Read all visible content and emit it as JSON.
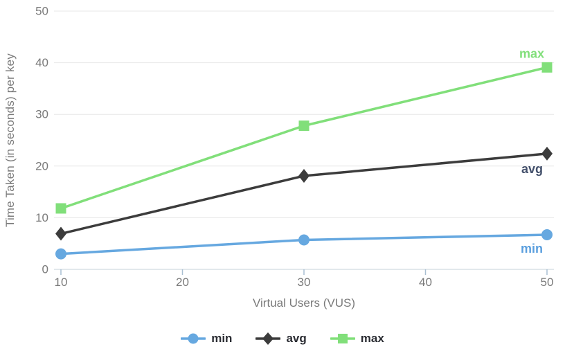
{
  "chart_data": {
    "type": "line",
    "title": "",
    "xlabel": "Virtual Users (VUS)",
    "ylabel": "Time Taken (in seconds) per key",
    "xlim": [
      10,
      50
    ],
    "ylim": [
      0,
      50
    ],
    "xticks": [
      10,
      20,
      30,
      40,
      50
    ],
    "yticks": [
      0,
      10,
      20,
      30,
      40,
      50
    ],
    "x": [
      10,
      30,
      50
    ],
    "grid": "horizontal",
    "legend_position": "bottom-center",
    "series": [
      {
        "name": "min",
        "marker": "circle",
        "color": "#66A8E0",
        "label_color": "#5B9FDE",
        "values": [
          3.0,
          5.7,
          6.7
        ]
      },
      {
        "name": "avg",
        "marker": "diamond",
        "color": "#3C3C3C",
        "label_color": "#43506B",
        "values": [
          6.9,
          18.1,
          22.4
        ]
      },
      {
        "name": "max",
        "marker": "square",
        "color": "#81DF7A",
        "label_color": "#81DF7A",
        "values": [
          11.8,
          27.8,
          39.1
        ]
      }
    ]
  },
  "colors": {
    "background": "#FFFFFF",
    "gridline": "#E7E7E7",
    "axis_line": "#C6D0D9",
    "tick_mark": "#A9BFD2",
    "tick_text": "#7A7A7A",
    "axis_title_text": "#7A7A7A",
    "legend_text": "#2B2D33"
  }
}
